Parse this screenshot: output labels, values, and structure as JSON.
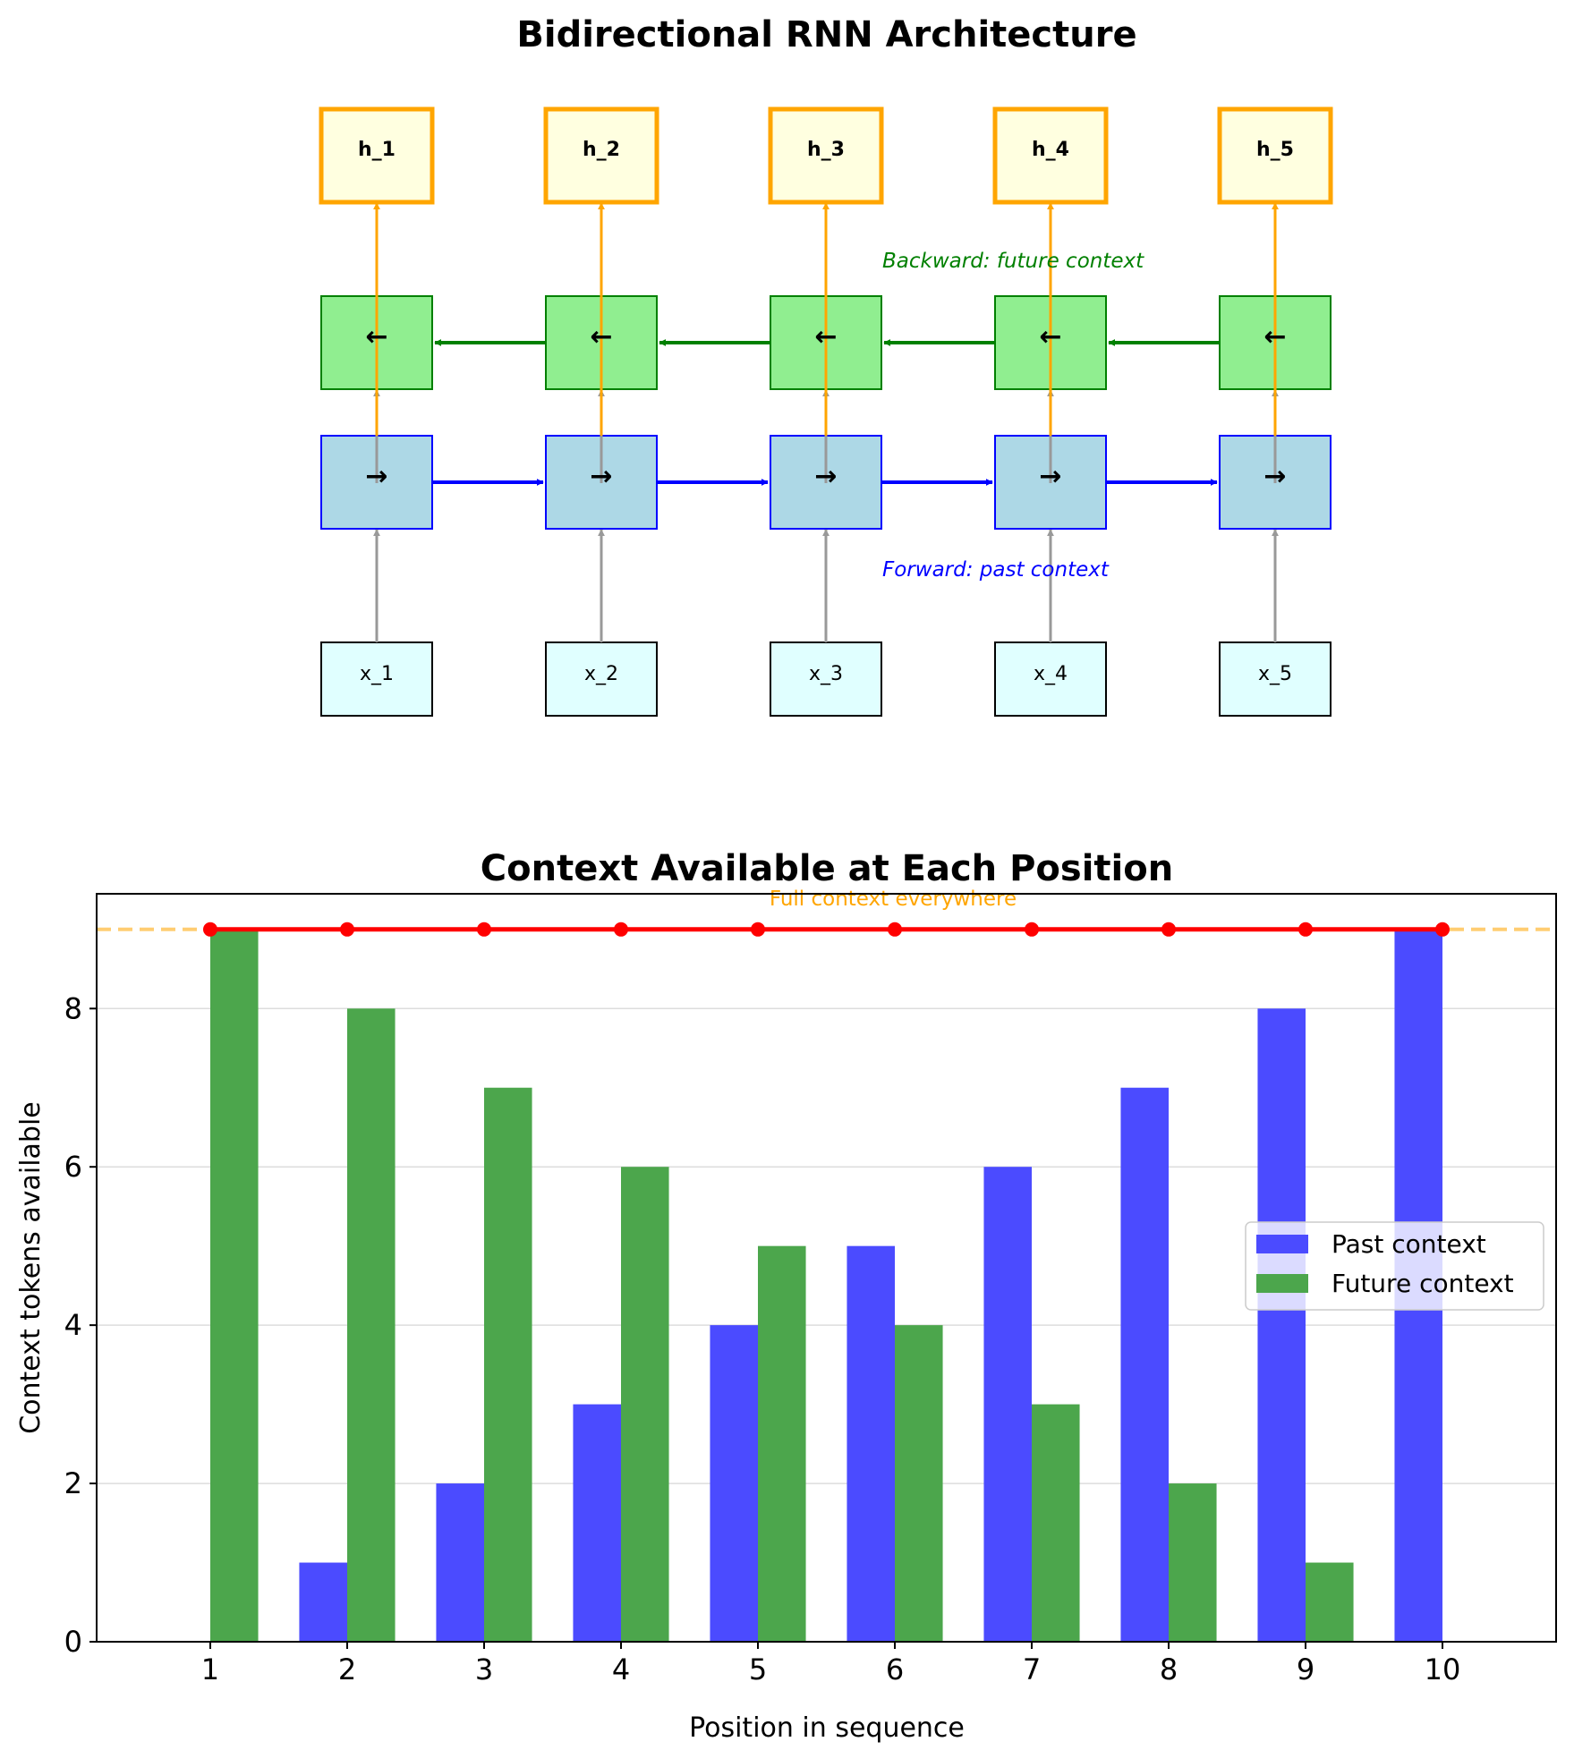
{
  "diagram": {
    "title": "Bidirectional RNN Architecture",
    "outputs": [
      "h_1",
      "h_2",
      "h_3",
      "h_4",
      "h_5"
    ],
    "inputs": [
      "x_1",
      "x_2",
      "x_3",
      "x_4",
      "x_5"
    ],
    "forward_symbol": "→",
    "backward_symbol": "←",
    "backward_caption": "Backward: future context",
    "forward_caption": "Forward: past context",
    "colors": {
      "output_fill": "#ffffe0",
      "output_stroke": "#ffa500",
      "backward_fill": "#90ee90",
      "backward_stroke": "#008000",
      "forward_fill": "#add8e6",
      "forward_stroke": "#0000ff",
      "input_fill": "#e0ffff",
      "input_stroke": "#000000",
      "input_arrow": "#999999"
    }
  },
  "chart_data": {
    "type": "bar",
    "title": "Context Available at Each Position",
    "xlabel": "Position in sequence",
    "ylabel": "Context tokens available",
    "categories": [
      "1",
      "2",
      "3",
      "4",
      "5",
      "6",
      "7",
      "8",
      "9",
      "10"
    ],
    "series": [
      {
        "name": "Past context",
        "values": [
          0,
          1,
          2,
          3,
          4,
          5,
          6,
          7,
          8,
          9
        ],
        "color": "#4b4bff"
      },
      {
        "name": "Future context",
        "values": [
          9,
          8,
          7,
          6,
          5,
          4,
          3,
          2,
          1,
          0
        ],
        "color": "#4ca64c"
      }
    ],
    "total_line": {
      "values": [
        9,
        9,
        9,
        9,
        9,
        9,
        9,
        9,
        9,
        9
      ],
      "color": "#ff0000"
    },
    "reference_line": {
      "value": 9,
      "label": "Full context everywhere",
      "color": "#ffa500"
    },
    "xlim": [
      0.17,
      10.83
    ],
    "ylim": [
      0,
      9.45
    ],
    "yticks": [
      0,
      2,
      4,
      6,
      8
    ],
    "grid": "y",
    "legend": "center-right"
  }
}
